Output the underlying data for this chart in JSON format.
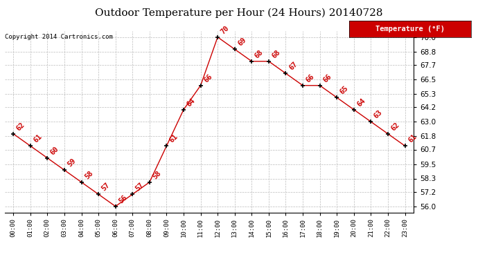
{
  "title": "Outdoor Temperature per Hour (24 Hours) 20140728",
  "copyright_text": "Copyright 2014 Cartronics.com",
  "legend_label": "Temperature (°F)",
  "hours": [
    0,
    1,
    2,
    3,
    4,
    5,
    6,
    7,
    8,
    9,
    10,
    11,
    12,
    13,
    14,
    15,
    16,
    17,
    18,
    19,
    20,
    21,
    22,
    23
  ],
  "temps": [
    62,
    61,
    60,
    59,
    58,
    57,
    56,
    57,
    58,
    61,
    64,
    66,
    70,
    69,
    68,
    68,
    67,
    66,
    66,
    65,
    64,
    63,
    62,
    61
  ],
  "ylim": [
    55.5,
    70.5
  ],
  "yticks": [
    56.0,
    57.2,
    58.3,
    59.5,
    60.7,
    61.8,
    63.0,
    64.2,
    65.3,
    66.5,
    67.7,
    68.8,
    70.0
  ],
  "line_color": "#cc0000",
  "label_color": "#cc0000",
  "marker_color": "#000000",
  "bg_color": "#ffffff",
  "grid_color": "#bbbbbb",
  "title_fontsize": 11,
  "annotation_fontsize": 7.5,
  "legend_bg": "#cc0000",
  "legend_fg": "#ffffff"
}
